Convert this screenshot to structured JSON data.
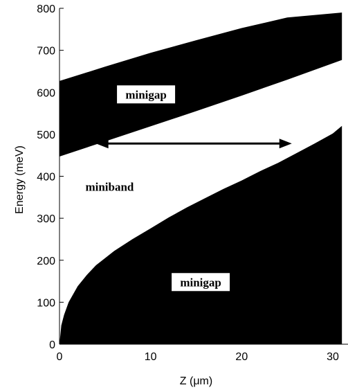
{
  "chart_data": {
    "type": "area",
    "xlabel": "Z (μm)",
    "ylabel": "Energy (meV)",
    "xlim": [
      0,
      31
    ],
    "ylim": [
      0,
      800
    ],
    "x_ticks": [
      0,
      10,
      20,
      30
    ],
    "x_tick_labels": [
      "0",
      "10",
      "20",
      "30"
    ],
    "y_ticks": [
      0,
      100,
      200,
      300,
      400,
      500,
      600,
      700,
      800
    ],
    "y_tick_labels": [
      "0",
      "100",
      "200",
      "300",
      "400",
      "500",
      "600",
      "700",
      "800"
    ],
    "grid": false,
    "series": [
      {
        "name": "minigap",
        "fill": "#000000",
        "x": [
          0,
          5,
          10,
          15,
          20,
          25,
          31
        ],
        "lower": [
          447,
          483,
          519,
          555,
          592,
          630,
          677
        ],
        "upper": [
          627,
          661,
          694,
          724,
          753,
          778,
          790
        ]
      },
      {
        "name": "minigap",
        "fill": "#000000",
        "x": [
          0,
          0.2,
          0.5,
          1,
          2,
          3,
          4,
          5,
          6,
          8,
          10,
          12,
          14,
          16,
          18,
          20,
          22,
          24,
          26,
          28,
          30,
          31
        ],
        "lower": [
          0,
          0,
          0,
          0,
          0,
          0,
          0,
          0,
          0,
          0,
          0,
          0,
          0,
          0,
          0,
          0,
          0,
          0,
          0,
          0,
          0,
          0
        ],
        "upper": [
          0,
          45,
          70,
          100,
          138,
          165,
          188,
          205,
          222,
          250,
          276,
          302,
          326,
          348,
          370,
          390,
          412,
          432,
          455,
          478,
          502,
          520
        ]
      }
    ],
    "annotations": [
      {
        "text": "minigap",
        "x": 9.5,
        "y": 595,
        "boxed": true
      },
      {
        "text": "miniband",
        "x": 5.5,
        "y": 375,
        "boxed": false
      },
      {
        "text": "minigap",
        "x": 15.5,
        "y": 148,
        "boxed": true
      }
    ],
    "arrow": {
      "x_start": 4,
      "x_end": 25.5,
      "y": 478,
      "double_headed": true
    }
  }
}
